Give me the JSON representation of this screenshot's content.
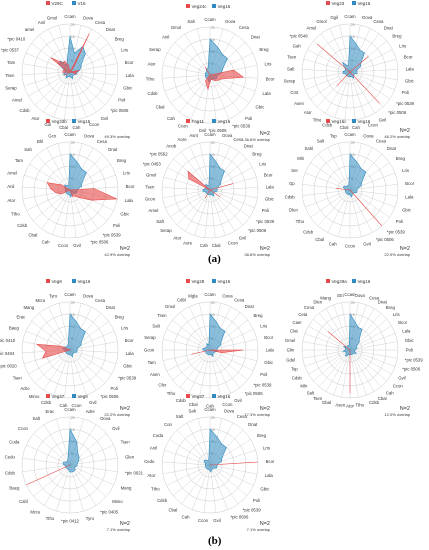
{
  "section_labels": [
    "(a)",
    "(b)"
  ],
  "colors": {
    "grid": "#c8c8c8",
    "text": "#333333",
    "blue": "#2e8bc0",
    "red": "#e84a4a"
  },
  "chart_data": [
    {
      "type": "radar",
      "legend": [
        "V29C",
        "V16"
      ],
      "categories": [
        "Ccam",
        "Oova",
        "Cesa",
        "Dnat",
        "Breg",
        "Lris",
        "Bcor",
        "Lala",
        "Gbic",
        "Poli",
        "*pic 0506",
        "Gvil",
        "Ccon",
        "Cah",
        "Cbal",
        "Gal",
        "Ator",
        "Cdsb",
        "Amel",
        "Serap",
        "Tsen",
        "Tam",
        "*pic 0537",
        "*pic 0410",
        "amel",
        "Anil",
        "Gmol"
      ],
      "series": [
        {
          "name": "V29C",
          "values": [
            0,
            0,
            18,
            2,
            0,
            0,
            4,
            2,
            3,
            0,
            0,
            0,
            0,
            0,
            0,
            0,
            0,
            0,
            3,
            0,
            3,
            3,
            2,
            10,
            5,
            5,
            3
          ]
        },
        {
          "name": "V16",
          "values": [
            15,
            8,
            12,
            10,
            6,
            5,
            4,
            3,
            3,
            2,
            2,
            2,
            3,
            2,
            2,
            2,
            3,
            2,
            2,
            3,
            2,
            2,
            3,
            6,
            6,
            3,
            5
          ]
        }
      ],
      "rlim": [
        0,
        20
      ],
      "ticks": [
        5,
        10,
        15,
        20
      ],
      "annotation": [
        "",
        "49.3% overlap"
      ]
    },
    {
      "type": "radar",
      "legend": [
        "Veg24c",
        "Veg16"
      ],
      "categories": [
        "Ccam",
        "Oova",
        "Cesa",
        "Dnat",
        "Breg",
        "Lris",
        "Bcor",
        "Lala",
        "Gbic",
        "Poli",
        "*pic 0539",
        "*pic 0506",
        "Gvil",
        "Ccon",
        "Cah",
        "Cbal",
        "Cdsb",
        "Ttho",
        "Ator",
        "Serap",
        "Anil",
        "Gmol",
        "Sah"
      ],
      "series": [
        {
          "name": "Veg24c",
          "values": [
            0,
            0,
            0,
            0,
            0,
            10,
            14,
            5,
            4,
            3,
            2,
            2,
            6,
            4,
            3,
            0,
            0,
            0,
            0,
            0,
            0,
            4,
            0
          ]
        },
        {
          "name": "Veg16",
          "values": [
            15,
            12,
            10,
            10,
            6,
            5,
            3,
            3,
            3,
            2,
            2,
            2,
            3,
            2,
            2,
            2,
            2,
            2,
            2,
            2,
            2,
            3,
            3
          ]
        }
      ],
      "rlim": [
        0,
        20
      ],
      "ticks": [
        5,
        10,
        15,
        20
      ],
      "annotation": [
        "N=2",
        "36.6% overlap"
      ]
    },
    {
      "type": "radar",
      "legend": [
        "Veg23",
        "Veg16"
      ],
      "categories": [
        "Ccam",
        "Oova",
        "Cesa",
        "Dnat",
        "Breg",
        "Lris",
        "Bcor",
        "Lala",
        "Gbic",
        "Poli",
        "*pic 0539",
        "*pic 0506",
        "Gvil",
        "Ccon",
        "Cah",
        "Cbal",
        "Cdsb",
        "Ttho",
        "Ator",
        "Asen",
        "Cmt",
        "Serap",
        "Salt",
        "Tsen",
        "Gah",
        "*pic 0548",
        "Amel",
        "Gmol",
        "Ggil"
      ],
      "series": [
        {
          "name": "Veg23",
          "values": [
            0,
            0,
            0,
            0,
            10,
            0,
            0,
            0,
            0,
            0,
            0,
            18,
            0,
            0,
            0,
            0,
            0,
            0,
            8,
            0,
            0,
            0,
            0,
            0,
            0,
            18,
            0,
            0,
            0
          ]
        },
        {
          "name": "Veg16",
          "values": [
            15,
            12,
            10,
            10,
            6,
            5,
            3,
            3,
            3,
            2,
            2,
            2,
            3,
            2,
            2,
            2,
            2,
            2,
            2,
            2,
            2,
            3,
            3,
            2,
            2,
            3,
            5,
            3,
            3
          ]
        }
      ],
      "rlim": [
        0,
        20
      ],
      "ticks": [
        5,
        10,
        15,
        20
      ],
      "annotation": [
        "N=2",
        "46.2% overlap"
      ]
    },
    {
      "type": "radar",
      "legend": [
        "Veg33b",
        "Veg16"
      ],
      "categories": [
        "Ccam",
        "Oova",
        "Cesa",
        "Dnat",
        "Breg",
        "Lris",
        "Bcor",
        "Lala",
        "Gbic",
        "Poli",
        "*pic 0539",
        "*pic 0506",
        "Gvil",
        "Ccon",
        "Cah",
        "Cbal",
        "Cdsb",
        "Ttho",
        "Ator",
        "Anil",
        "Amel",
        "Tam",
        "Sah",
        "Bhl",
        "Gcn"
      ],
      "series": [
        {
          "name": "Veg33b",
          "values": [
            0,
            0,
            0,
            0,
            0,
            0,
            10,
            20,
            10,
            5,
            3,
            3,
            0,
            0,
            0,
            0,
            0,
            4,
            6,
            8,
            10,
            4,
            0,
            0,
            0
          ]
        },
        {
          "name": "Veg16",
          "values": [
            15,
            12,
            10,
            10,
            6,
            5,
            3,
            3,
            3,
            2,
            2,
            2,
            3,
            2,
            2,
            2,
            2,
            2,
            2,
            2,
            2,
            3,
            3,
            2,
            2
          ]
        }
      ],
      "rlim": [
        0,
        20
      ],
      "ticks": [
        5,
        10,
        15,
        20
      ],
      "annotation": [
        "N=2",
        "42.9% overlap"
      ]
    },
    {
      "type": "radar",
      "legend": [
        "Fag11",
        "Veg16"
      ],
      "categories": [
        "Ccam",
        "Oova",
        "Cesa",
        "Dnat",
        "Breg",
        "Lris",
        "Bcor",
        "Lala",
        "Gbic",
        "Poli",
        "*pic 0539",
        "*pic 0506",
        "Gvil",
        "Ccon",
        "Cbal",
        "Cah",
        "Aore",
        "Ator",
        "Serap",
        "Saft",
        "Amel",
        "Gcon",
        "Tsen",
        "Gmol",
        "*pic 0453",
        "*pic 0562",
        "Anob",
        "Aore",
        "Asnt"
      ],
      "series": [
        {
          "name": "Fag11",
          "values": [
            0,
            0,
            0,
            0,
            0,
            0,
            10,
            0,
            0,
            0,
            5,
            0,
            0,
            0,
            0,
            0,
            0,
            4,
            0,
            0,
            0,
            0,
            0,
            0,
            10,
            12,
            0,
            0,
            0
          ]
        },
        {
          "name": "Veg16",
          "values": [
            15,
            12,
            10,
            10,
            6,
            5,
            3,
            3,
            3,
            2,
            2,
            2,
            3,
            2,
            2,
            2,
            2,
            2,
            2,
            2,
            2,
            3,
            3,
            2,
            2,
            2,
            3,
            2,
            2
          ]
        }
      ],
      "rlim": [
        0,
        20
      ],
      "ticks": [
        5,
        10,
        15,
        20
      ],
      "annotation": [
        "N=2",
        "38.8% overlap"
      ]
    },
    {
      "type": "radar",
      "legend": [
        "Veg16c",
        "Veg16"
      ],
      "categories": [
        "Ccam",
        "Oova",
        "Cesa",
        "Dnat",
        "Breg",
        "Lris",
        "Bcor",
        "Lala",
        "Gbic",
        "Poli",
        "*pic 0539",
        "*pic 0506",
        "Gvil",
        "Ccon",
        "Cah",
        "Cbal",
        "Cdsb",
        "Ttho",
        "Dlen",
        "Cdsb",
        "Gp",
        "Ser",
        "Mlri",
        "Sahl",
        "Salt",
        "Tsp"
      ],
      "series": [
        {
          "name": "Veg16c",
          "values": [
            0,
            0,
            0,
            0,
            0,
            0,
            0,
            0,
            0,
            0,
            20,
            0,
            0,
            0,
            0,
            0,
            0,
            0,
            0,
            0,
            6,
            0,
            0,
            0,
            0,
            0
          ]
        },
        {
          "name": "Veg16",
          "values": [
            15,
            12,
            10,
            10,
            6,
            5,
            3,
            3,
            3,
            2,
            2,
            2,
            3,
            2,
            2,
            2,
            2,
            2,
            2,
            2,
            2,
            3,
            3,
            2,
            2,
            2
          ]
        }
      ],
      "rlim": [
        0,
        20
      ],
      "ticks": [
        5,
        10,
        15,
        20
      ],
      "annotation": [
        "N=2",
        "22.9% overlap"
      ]
    },
    {
      "type": "radar",
      "legend": [
        "Veg8",
        "Veg16"
      ],
      "categories": [
        "Ccam",
        "Oova",
        "Cesa",
        "Dnat",
        "Breg",
        "Lris",
        "Bcor",
        "Lala",
        "Gbic",
        "*pic 0539",
        "Poli",
        "*pic 0506",
        "Gvil",
        "Ccon",
        "Cah",
        "Cdsb",
        "Mimo",
        "Adro",
        "Tsen",
        "*pic 0020",
        "*pic 0404",
        "*pic 0410",
        "Baeg",
        "Erac",
        "Mang",
        "Mcra",
        "Tyro"
      ],
      "series": [
        {
          "name": "Veg8",
          "values": [
            0,
            0,
            0,
            0,
            0,
            0,
            0,
            0,
            0,
            0,
            0,
            0,
            0,
            0,
            0,
            0,
            0,
            0,
            0,
            12,
            10,
            14,
            4,
            0,
            0,
            0,
            0
          ]
        },
        {
          "name": "Veg16",
          "values": [
            15,
            12,
            10,
            10,
            6,
            5,
            3,
            3,
            3,
            2,
            2,
            2,
            3,
            2,
            2,
            2,
            2,
            2,
            2,
            2,
            2,
            3,
            3,
            2,
            2,
            2,
            3
          ]
        }
      ],
      "rlim": [
        0,
        20
      ],
      "ticks": [
        5,
        10,
        15,
        20
      ],
      "annotation": [
        "N=2",
        "22.2% overlap"
      ]
    },
    {
      "type": "radar",
      "legend": [
        "Veg28",
        "Veg16"
      ],
      "categories": [
        "Ccam",
        "Oova",
        "Cesa",
        "Dnat",
        "Breg",
        "Lris",
        "Bcor",
        "Lala",
        "Gbic",
        "Poli",
        "*pic 0539",
        "*pic 0506",
        "Gvil",
        "Ccon",
        "Cah",
        "Cbal",
        "Cdsb",
        "Ttho",
        "Cfer",
        "Asen",
        "Tam",
        "Gcon",
        "Serap",
        "Salt",
        "Tsen",
        "Gmol",
        "Cdbl",
        "Mgla"
      ],
      "series": [
        {
          "name": "Veg28",
          "values": [
            0,
            0,
            0,
            0,
            0,
            0,
            0,
            14,
            5,
            0,
            0,
            0,
            0,
            0,
            0,
            0,
            0,
            0,
            0,
            0,
            8,
            0,
            0,
            0,
            0,
            0,
            0,
            0
          ]
        },
        {
          "name": "Veg16",
          "values": [
            15,
            12,
            10,
            10,
            6,
            5,
            3,
            3,
            3,
            2,
            2,
            2,
            3,
            2,
            2,
            2,
            2,
            2,
            2,
            2,
            2,
            3,
            3,
            2,
            2,
            2,
            3,
            2
          ]
        }
      ],
      "rlim": [
        0,
        20
      ],
      "ticks": [
        5,
        10,
        15,
        20
      ],
      "annotation": [
        "N=2",
        "17.3% overlap"
      ]
    },
    {
      "type": "radar",
      "legend": [
        "Veg29a",
        "Veg16"
      ],
      "categories": [
        "Ccam",
        "Oova",
        "Cesa",
        "Dnat",
        "Breg",
        "Lris",
        "Bcor",
        "Lala",
        "Gbic",
        "Poli",
        "*pic 0539",
        "*pic 0506",
        "Gvil",
        "Ccon",
        "Cah",
        "Cbal",
        "Cdsb",
        "Ttho",
        "Ator",
        "Asen",
        "Gbal",
        "Tsen",
        "Salt",
        "Mlri",
        "Cdsb",
        "Tsp",
        "Gdel",
        "Glin",
        "Gmel",
        "Clat",
        "Caer",
        "Ceta",
        "Cmut",
        "Dlen",
        "Mang",
        "Gtri"
      ],
      "series": [
        {
          "name": "Veg29a",
          "values": [
            0,
            0,
            0,
            0,
            0,
            0,
            0,
            0,
            0,
            0,
            0,
            0,
            0,
            0,
            0,
            0,
            0,
            0,
            18,
            0,
            0,
            0,
            0,
            0,
            0,
            0,
            0,
            0,
            0,
            0,
            0,
            12,
            0,
            0,
            0,
            0
          ]
        },
        {
          "name": "Veg16",
          "values": [
            15,
            12,
            10,
            10,
            6,
            5,
            3,
            3,
            3,
            2,
            2,
            2,
            3,
            2,
            2,
            2,
            2,
            2,
            2,
            2,
            2,
            3,
            3,
            2,
            2,
            2,
            3,
            2,
            2,
            2,
            3,
            2,
            2,
            2,
            2,
            2
          ]
        }
      ],
      "rlim": [
        0,
        20
      ],
      "ticks": [
        5,
        10,
        15,
        20
      ],
      "annotation": [
        "N=2",
        "12.0% overlap"
      ]
    },
    {
      "type": "radar",
      "legend": [
        "Veg37",
        "Veg8"
      ],
      "categories": [
        "Ccam",
        "Adre",
        "Oova",
        "Gvil",
        "Tsen",
        "Glen",
        "*pic 0021",
        "Mang",
        "Mimo",
        "*pic 0405",
        "Tyro",
        "*pic 0412",
        "Ttho",
        "Mcra",
        "Cahl",
        "Baeg",
        "Cdsb",
        "Cedu",
        "Coda",
        "Ccon",
        "Salt",
        "Erac"
      ],
      "series": [
        {
          "name": "Veg37",
          "values": [
            0,
            0,
            0,
            0,
            0,
            0,
            0,
            0,
            0,
            0,
            0,
            0,
            0,
            0,
            0,
            20,
            0,
            0,
            0,
            0,
            0,
            0
          ]
        },
        {
          "name": "Veg8",
          "values": [
            15,
            10,
            6,
            5,
            4,
            3,
            3,
            2,
            3,
            3,
            3,
            3,
            2,
            2,
            2,
            2,
            2,
            3,
            3,
            2,
            2,
            3
          ]
        }
      ],
      "rlim": [
        0,
        20
      ],
      "ticks": [
        5,
        10,
        15,
        20
      ],
      "annotation": [
        "N=2",
        "7.1% overlap"
      ]
    },
    {
      "type": "radar",
      "legend": [
        "Veg37",
        "Veg16"
      ],
      "categories": [
        "Ccam",
        "Oova",
        "Cesa",
        "Dnat",
        "Breg",
        "Lris",
        "Bcor",
        "Lala",
        "Gbic",
        "Poli",
        "*pic 0539",
        "*pic 0506",
        "Gvil",
        "Ccon",
        "Cah",
        "Cbal",
        "Cdsb",
        "Ttho",
        "Ator",
        "Cedu",
        "Anil",
        "Coda",
        "Con",
        "Salt",
        "Sah"
      ],
      "series": [
        {
          "name": "Veg37",
          "values": [
            0,
            0,
            0,
            0,
            0,
            0,
            20,
            0,
            0,
            0,
            0,
            0,
            0,
            0,
            0,
            0,
            0,
            0,
            0,
            0,
            0,
            0,
            0,
            0,
            0
          ]
        },
        {
          "name": "Veg16",
          "values": [
            15,
            12,
            10,
            10,
            6,
            5,
            3,
            3,
            3,
            2,
            2,
            2,
            3,
            2,
            2,
            2,
            2,
            2,
            2,
            2,
            2,
            3,
            3,
            2,
            2
          ]
        }
      ],
      "rlim": [
        0,
        20
      ],
      "ticks": [
        5,
        10,
        15,
        20
      ],
      "annotation": [
        "N=2",
        "7.1% overlap"
      ]
    }
  ]
}
